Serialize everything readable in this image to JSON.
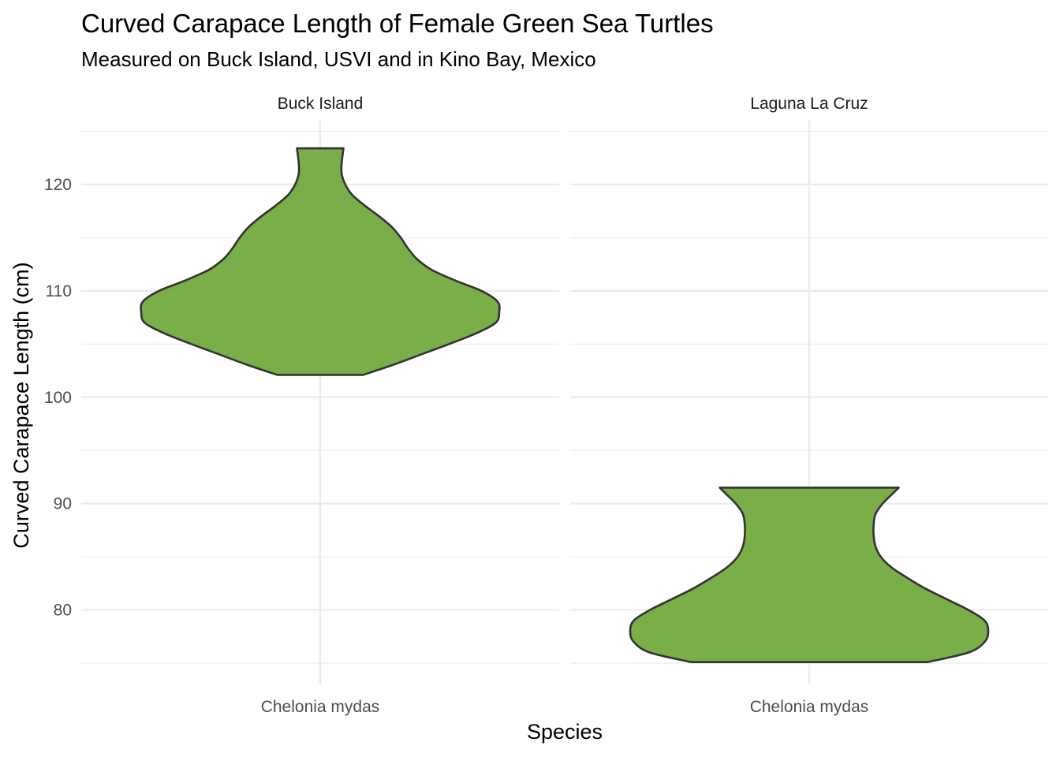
{
  "chart_data": {
    "type": "violin",
    "title": "Curved Carapace Length of Female Green Sea Turtles",
    "subtitle": "Measured on Buck Island, USVI and in Kino Bay, Mexico",
    "xlabel": "Species",
    "ylabel": "Curved Carapace Length (cm)",
    "ylim": [
      73.0,
      126.0
    ],
    "yticks": [
      80,
      90,
      100,
      110,
      120
    ],
    "grid": true,
    "fill_color": "#6aa535",
    "outline_color": "#333333",
    "panels": [
      {
        "facet": "Buck Island",
        "category": "Chelonia mydas",
        "y_min": 102.1,
        "y_max": 123.4,
        "density_profile": [
          {
            "y": 102.1,
            "w": 0.24
          },
          {
            "y": 103.0,
            "w": 0.4
          },
          {
            "y": 104.0,
            "w": 0.56
          },
          {
            "y": 105.0,
            "w": 0.72
          },
          {
            "y": 106.0,
            "w": 0.87
          },
          {
            "y": 107.0,
            "w": 0.98
          },
          {
            "y": 108.0,
            "w": 1.0
          },
          {
            "y": 109.0,
            "w": 0.99
          },
          {
            "y": 110.0,
            "w": 0.9
          },
          {
            "y": 111.0,
            "w": 0.75
          },
          {
            "y": 112.0,
            "w": 0.62
          },
          {
            "y": 113.0,
            "w": 0.54
          },
          {
            "y": 114.0,
            "w": 0.49
          },
          {
            "y": 115.0,
            "w": 0.45
          },
          {
            "y": 116.0,
            "w": 0.4
          },
          {
            "y": 117.0,
            "w": 0.33
          },
          {
            "y": 118.0,
            "w": 0.25
          },
          {
            "y": 119.0,
            "w": 0.18
          },
          {
            "y": 120.0,
            "w": 0.14
          },
          {
            "y": 121.0,
            "w": 0.12
          },
          {
            "y": 122.0,
            "w": 0.12
          },
          {
            "y": 123.4,
            "w": 0.13
          }
        ]
      },
      {
        "facet": "Laguna La Cruz",
        "category": "Chelonia mydas",
        "y_min": 75.1,
        "y_max": 91.5,
        "density_profile": [
          {
            "y": 75.1,
            "w": 0.66
          },
          {
            "y": 76.0,
            "w": 0.89
          },
          {
            "y": 77.0,
            "w": 0.98
          },
          {
            "y": 78.0,
            "w": 1.0
          },
          {
            "y": 79.0,
            "w": 0.98
          },
          {
            "y": 80.0,
            "w": 0.89
          },
          {
            "y": 81.0,
            "w": 0.77
          },
          {
            "y": 82.0,
            "w": 0.65
          },
          {
            "y": 83.0,
            "w": 0.55
          },
          {
            "y": 84.0,
            "w": 0.46
          },
          {
            "y": 85.0,
            "w": 0.4
          },
          {
            "y": 86.0,
            "w": 0.37
          },
          {
            "y": 87.0,
            "w": 0.36
          },
          {
            "y": 88.0,
            "w": 0.36
          },
          {
            "y": 89.0,
            "w": 0.37
          },
          {
            "y": 90.0,
            "w": 0.41
          },
          {
            "y": 91.0,
            "w": 0.47
          },
          {
            "y": 91.5,
            "w": 0.5
          }
        ]
      }
    ]
  }
}
